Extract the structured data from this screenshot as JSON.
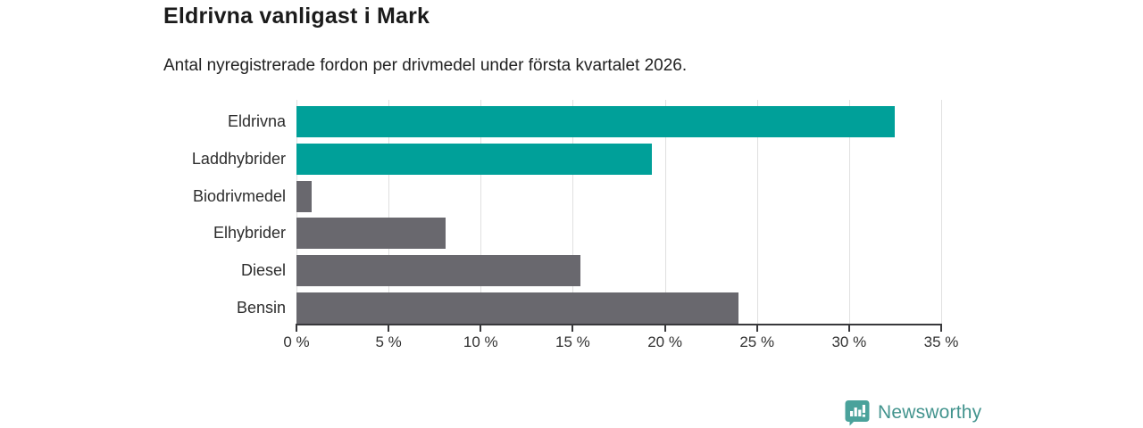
{
  "header": {
    "title": "Eldrivna vanligast i Mark",
    "subtitle": "Antal nyregistrerade fordon per drivmedel under första kvartalet 2026."
  },
  "chart_data": {
    "type": "bar",
    "orientation": "horizontal",
    "title": "Eldrivna vanligast i Mark",
    "subtitle": "Antal nyregistrerade fordon per drivmedel under första kvartalet 2026.",
    "categories": [
      "Eldrivna",
      "Laddhybrider",
      "Biodrivmedel",
      "Elhybrider",
      "Diesel",
      "Bensin"
    ],
    "values": [
      32.5,
      19.3,
      0.8,
      8.1,
      15.4,
      24.0
    ],
    "unit": "%",
    "bar_colors": [
      "#00a099",
      "#00a099",
      "#69686e",
      "#69686e",
      "#69686e",
      "#69686e"
    ],
    "highlight_color": "#00a099",
    "default_color": "#69686e",
    "xlabel": "",
    "ylabel": "",
    "xlim": [
      0,
      35
    ],
    "x_tick_values": [
      0,
      5,
      10,
      15,
      20,
      25,
      30,
      35
    ],
    "x_tick_labels": [
      "0 %",
      "5 %",
      "10 %",
      "15 %",
      "20 %",
      "25 %",
      "30 %",
      "35 %"
    ],
    "grid": true,
    "legend": "none"
  },
  "footer": {
    "brand": "Newsworthy",
    "brand_color": "#43948e",
    "logo_icon_color": "#4aa29b"
  }
}
